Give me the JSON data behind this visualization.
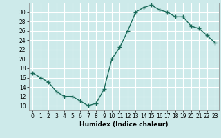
{
  "x": [
    0,
    1,
    2,
    3,
    4,
    5,
    6,
    7,
    8,
    9,
    10,
    11,
    12,
    13,
    14,
    15,
    16,
    17,
    18,
    19,
    20,
    21,
    22,
    23
  ],
  "y": [
    17,
    16,
    15,
    13,
    12,
    12,
    11,
    10,
    10.5,
    13.5,
    20,
    22.5,
    26,
    30,
    31,
    31.5,
    30.5,
    30,
    29,
    29,
    27,
    26.5,
    25,
    23.5
  ],
  "line_color": "#1a6b5a",
  "marker": "+",
  "marker_size": 4,
  "marker_lw": 1.0,
  "xlabel": "Humidex (Indice chaleur)",
  "xlim": [
    -0.5,
    23.5
  ],
  "ylim": [
    9,
    32
  ],
  "yticks": [
    10,
    12,
    14,
    16,
    18,
    20,
    22,
    24,
    26,
    28,
    30
  ],
  "xtick_labels": [
    "0",
    "1",
    "2",
    "3",
    "4",
    "5",
    "6",
    "7",
    "8",
    "9",
    "10",
    "11",
    "12",
    "13",
    "14",
    "15",
    "16",
    "17",
    "18",
    "19",
    "20",
    "21",
    "22",
    "23"
  ],
  "bg_color": "#cdeaea",
  "grid_color": "#ffffff",
  "label_fontsize": 6.5,
  "tick_fontsize": 5.5,
  "line_width": 1.0
}
